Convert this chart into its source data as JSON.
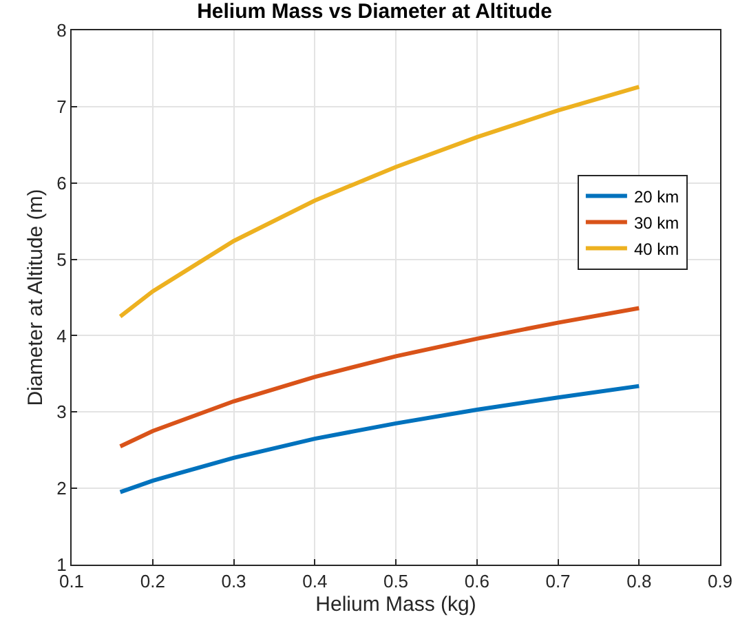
{
  "chart_data": {
    "type": "line",
    "title": "Helium Mass vs Diameter at Altitude",
    "xlabel": "Helium Mass (kg)",
    "ylabel": "Diameter at Altitude (m)",
    "x": [
      0.16,
      0.2,
      0.3,
      0.4,
      0.5,
      0.6,
      0.7,
      0.8
    ],
    "series": [
      {
        "name": "20 km",
        "color": "#0072bd",
        "values": [
          1.95,
          2.1,
          2.4,
          2.65,
          2.85,
          3.03,
          3.19,
          3.34
        ]
      },
      {
        "name": "30 km",
        "color": "#d95319",
        "values": [
          2.55,
          2.75,
          3.14,
          3.46,
          3.73,
          3.96,
          4.17,
          4.36
        ]
      },
      {
        "name": "40 km",
        "color": "#edb120",
        "values": [
          4.25,
          4.58,
          5.24,
          5.77,
          6.21,
          6.6,
          6.95,
          7.26
        ]
      }
    ],
    "xlim": [
      0.1,
      0.9
    ],
    "xticks": [
      0.1,
      0.2,
      0.3,
      0.4,
      0.5,
      0.6,
      0.7,
      0.8,
      0.9
    ],
    "ylim": [
      1,
      8
    ],
    "yticks": [
      1,
      2,
      3,
      4,
      5,
      6,
      7,
      8
    ],
    "grid": true,
    "legend": "top right",
    "marker": "none",
    "line_style": "solid"
  }
}
